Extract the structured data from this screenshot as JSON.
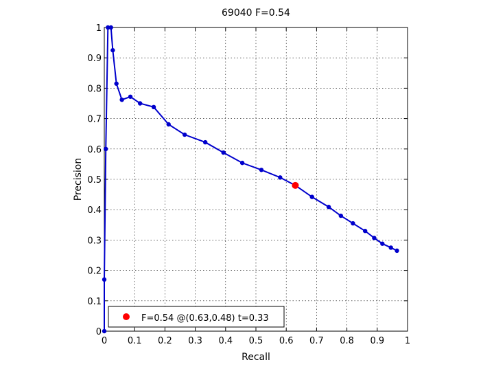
{
  "chart_data": {
    "type": "line",
    "title": "69040 F=0.54",
    "xlabel": "Recall",
    "ylabel": "Precision",
    "xlim": [
      0,
      1
    ],
    "ylim": [
      0,
      1
    ],
    "xticks": [
      0,
      0.1,
      0.2,
      0.3,
      0.4,
      0.5,
      0.6,
      0.7,
      0.8,
      0.9,
      1
    ],
    "yticks": [
      0,
      0.1,
      0.2,
      0.3,
      0.4,
      0.5,
      0.6,
      0.7,
      0.8,
      0.9,
      1
    ],
    "xtick_labels": [
      "0",
      "0.1",
      "0.2",
      "0.3",
      "0.4",
      "0.5",
      "0.6",
      "0.7",
      "0.8",
      "0.9",
      "1"
    ],
    "ytick_labels": [
      "0",
      "0.1",
      "0.2",
      "0.3",
      "0.4",
      "0.5",
      "0.6",
      "0.7",
      "0.8",
      "0.9",
      "1"
    ],
    "grid": true,
    "legend_position": "bottom-left",
    "series": [
      {
        "color": "#0000cc",
        "x": [
          0,
          0.0,
          0.005,
          0.012,
          0.022,
          0.028,
          0.04,
          0.058,
          0.086,
          0.118,
          0.163,
          0.212,
          0.265,
          0.333,
          0.393,
          0.455,
          0.518,
          0.58,
          0.63,
          0.685,
          0.74,
          0.78,
          0.82,
          0.86,
          0.89,
          0.917,
          0.945,
          0.965
        ],
        "y": [
          0,
          0.17,
          0.6,
          1.0,
          1.0,
          0.925,
          0.815,
          0.762,
          0.772,
          0.75,
          0.738,
          0.681,
          0.647,
          0.622,
          0.588,
          0.554,
          0.531,
          0.506,
          0.48,
          0.442,
          0.409,
          0.38,
          0.355,
          0.33,
          0.307,
          0.288,
          0.275,
          0.265
        ]
      }
    ],
    "highlight": {
      "x": 0.63,
      "y": 0.48,
      "color": "#ff0000"
    },
    "legend": {
      "label": "F=0.54 @(0.63,0.48) t=0.33"
    }
  }
}
